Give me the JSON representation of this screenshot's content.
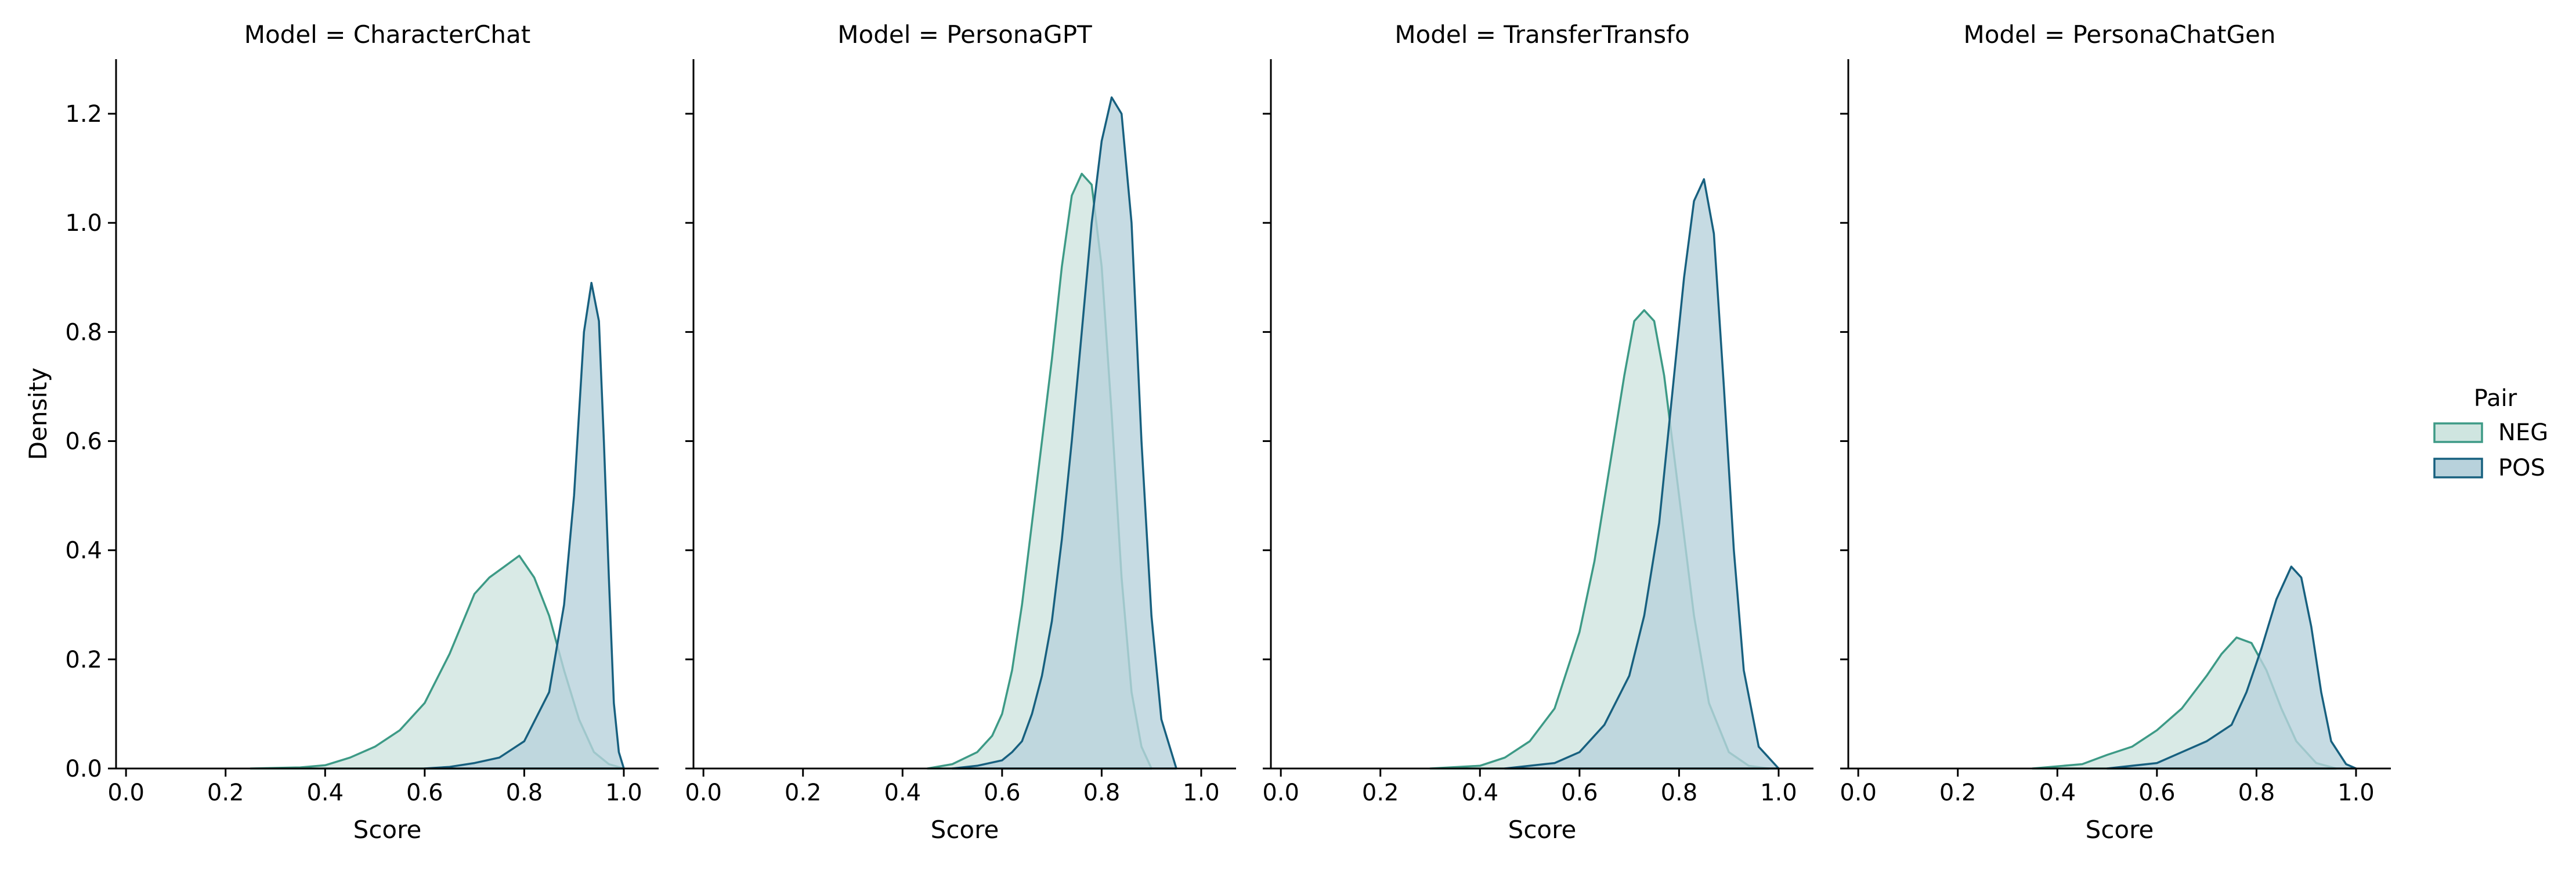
{
  "chart_data": {
    "type": "area",
    "kind": "kde-density-facets",
    "facet_label": "Model",
    "xlabel": "Score",
    "ylabel": "Density",
    "xlim": [
      -0.02,
      1.07
    ],
    "ylim": [
      0,
      1.3
    ],
    "xticks": [
      0.0,
      0.2,
      0.4,
      0.6,
      0.8,
      1.0
    ],
    "yticks": [
      0.0,
      0.2,
      0.4,
      0.6,
      0.8,
      1.0,
      1.2
    ],
    "grid": false,
    "legend": {
      "title": "Pair",
      "position": "right",
      "entries": [
        "NEG",
        "POS"
      ]
    },
    "colors": {
      "NEG": {
        "stroke": "#3d9a86",
        "fill": "#cfe5e0"
      },
      "POS": {
        "stroke": "#17607f",
        "fill": "#b8d2dc"
      }
    },
    "panels": [
      {
        "title": "Model = CharacterChat",
        "series": [
          {
            "name": "NEG",
            "x": [
              0.25,
              0.35,
              0.4,
              0.45,
              0.5,
              0.55,
              0.6,
              0.65,
              0.7,
              0.73,
              0.76,
              0.79,
              0.82,
              0.85,
              0.88,
              0.91,
              0.94,
              0.97,
              1.0
            ],
            "y": [
              0,
              0.002,
              0.006,
              0.02,
              0.04,
              0.07,
              0.12,
              0.21,
              0.32,
              0.35,
              0.37,
              0.39,
              0.35,
              0.28,
              0.18,
              0.09,
              0.03,
              0.008,
              0
            ]
          },
          {
            "name": "POS",
            "x": [
              0.6,
              0.65,
              0.7,
              0.75,
              0.8,
              0.85,
              0.88,
              0.9,
              0.92,
              0.935,
              0.95,
              0.96,
              0.97,
              0.98,
              0.99,
              1.0
            ],
            "y": [
              0,
              0.003,
              0.01,
              0.02,
              0.05,
              0.14,
              0.3,
              0.5,
              0.8,
              0.89,
              0.82,
              0.6,
              0.35,
              0.12,
              0.03,
              0
            ]
          }
        ]
      },
      {
        "title": "Model = PersonaGPT",
        "series": [
          {
            "name": "NEG",
            "x": [
              0.45,
              0.5,
              0.55,
              0.58,
              0.6,
              0.62,
              0.64,
              0.66,
              0.68,
              0.7,
              0.72,
              0.74,
              0.76,
              0.78,
              0.8,
              0.82,
              0.84,
              0.86,
              0.88,
              0.9
            ],
            "y": [
              0,
              0.008,
              0.03,
              0.06,
              0.1,
              0.18,
              0.3,
              0.45,
              0.6,
              0.75,
              0.92,
              1.05,
              1.09,
              1.07,
              0.92,
              0.65,
              0.35,
              0.14,
              0.04,
              0
            ]
          },
          {
            "name": "POS",
            "x": [
              0.5,
              0.55,
              0.6,
              0.62,
              0.64,
              0.66,
              0.68,
              0.7,
              0.72,
              0.74,
              0.76,
              0.78,
              0.8,
              0.82,
              0.84,
              0.86,
              0.88,
              0.9,
              0.92,
              0.95
            ],
            "y": [
              0,
              0.005,
              0.015,
              0.03,
              0.05,
              0.1,
              0.17,
              0.27,
              0.42,
              0.6,
              0.8,
              1.0,
              1.15,
              1.23,
              1.2,
              1.0,
              0.6,
              0.28,
              0.09,
              0
            ]
          }
        ]
      },
      {
        "title": "Model = TransferTransfo",
        "series": [
          {
            "name": "NEG",
            "x": [
              0.3,
              0.4,
              0.45,
              0.5,
              0.55,
              0.6,
              0.63,
              0.66,
              0.69,
              0.71,
              0.73,
              0.75,
              0.77,
              0.8,
              0.83,
              0.86,
              0.9,
              0.94,
              0.98
            ],
            "y": [
              0,
              0.005,
              0.02,
              0.05,
              0.11,
              0.25,
              0.38,
              0.55,
              0.72,
              0.82,
              0.84,
              0.82,
              0.72,
              0.5,
              0.28,
              0.12,
              0.03,
              0.005,
              0
            ]
          },
          {
            "name": "POS",
            "x": [
              0.45,
              0.55,
              0.6,
              0.65,
              0.7,
              0.73,
              0.76,
              0.79,
              0.81,
              0.83,
              0.85,
              0.87,
              0.89,
              0.91,
              0.93,
              0.96,
              1.0
            ],
            "y": [
              0,
              0.01,
              0.03,
              0.08,
              0.17,
              0.28,
              0.45,
              0.72,
              0.9,
              1.04,
              1.08,
              0.98,
              0.7,
              0.4,
              0.18,
              0.04,
              0
            ]
          }
        ]
      },
      {
        "title": "Model = PersonaChatGen",
        "series": [
          {
            "name": "NEG",
            "x": [
              0.35,
              0.45,
              0.5,
              0.55,
              0.6,
              0.65,
              0.7,
              0.73,
              0.76,
              0.79,
              0.82,
              0.85,
              0.88,
              0.92,
              0.96
            ],
            "y": [
              0,
              0.008,
              0.025,
              0.04,
              0.07,
              0.11,
              0.17,
              0.21,
              0.24,
              0.23,
              0.18,
              0.11,
              0.05,
              0.01,
              0
            ]
          },
          {
            "name": "POS",
            "x": [
              0.5,
              0.6,
              0.65,
              0.7,
              0.75,
              0.78,
              0.81,
              0.84,
              0.87,
              0.89,
              0.91,
              0.93,
              0.95,
              0.98,
              1.0
            ],
            "y": [
              0,
              0.01,
              0.03,
              0.05,
              0.08,
              0.14,
              0.22,
              0.31,
              0.37,
              0.35,
              0.26,
              0.14,
              0.05,
              0.008,
              0
            ]
          }
        ]
      }
    ]
  }
}
